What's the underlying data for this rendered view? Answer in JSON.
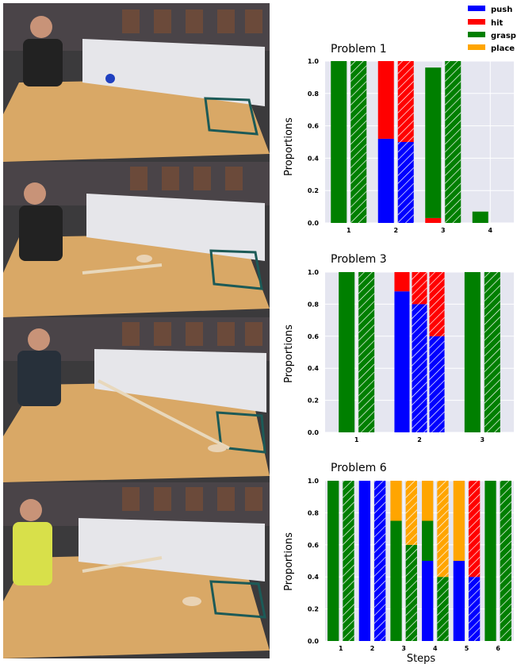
{
  "colors": {
    "push": "#0000ff",
    "hit": "#ff0000",
    "grasp": "#007f00",
    "place": "#ffa500",
    "plot_bg": "#e5e6f0"
  },
  "legend": {
    "placement": "top-right",
    "entries": [
      {
        "label": "push",
        "color": "#0000ff"
      },
      {
        "label": "hit",
        "color": "#ff0000"
      },
      {
        "label": "grasp",
        "color": "#007f00"
      },
      {
        "label": "place",
        "color": "#ffa500"
      }
    ]
  },
  "photos": [
    {
      "description_icon": "person-pushing-ball-photo"
    },
    {
      "description_icon": "person-using-stick-photo"
    },
    {
      "description_icon": "person-reaching-with-stick-photo"
    },
    {
      "description_icon": "person-using-stick-photo"
    }
  ],
  "xlabel": "Steps",
  "chart_data": [
    {
      "type": "bar",
      "title": "Problem 1",
      "ylabel": "Proportions",
      "xlabel": "",
      "ylim": [
        0,
        1
      ],
      "yticks": [
        "0.0",
        "0.2",
        "0.4",
        "0.6",
        "0.8",
        "1.0"
      ],
      "categories": [
        "1",
        "2",
        "3",
        "4"
      ],
      "grid": true,
      "bars": [
        {
          "step": "1",
          "hatched": false,
          "stack": [
            {
              "action": "grasp",
              "value": 1.0
            }
          ]
        },
        {
          "step": "1",
          "hatched": true,
          "stack": [
            {
              "action": "grasp",
              "value": 1.0
            }
          ]
        },
        {
          "step": "2",
          "hatched": false,
          "stack": [
            {
              "action": "push",
              "value": 0.52
            },
            {
              "action": "hit",
              "value": 0.48
            }
          ]
        },
        {
          "step": "2",
          "hatched": true,
          "stack": [
            {
              "action": "push",
              "value": 0.5
            },
            {
              "action": "hit",
              "value": 0.5
            }
          ]
        },
        {
          "step": "3",
          "hatched": false,
          "stack": [
            {
              "action": "hit",
              "value": 0.03
            },
            {
              "action": "grasp",
              "value": 0.93
            }
          ]
        },
        {
          "step": "3",
          "hatched": true,
          "stack": [
            {
              "action": "grasp",
              "value": 1.0
            }
          ]
        },
        {
          "step": "4",
          "hatched": false,
          "stack": [
            {
              "action": "grasp",
              "value": 0.07
            }
          ]
        },
        {
          "step": "4",
          "hatched": true,
          "stack": []
        }
      ]
    },
    {
      "type": "bar",
      "title": "Problem 3",
      "ylabel": "Proportions",
      "xlabel": "",
      "ylim": [
        0,
        1
      ],
      "yticks": [
        "0.0",
        "0.2",
        "0.4",
        "0.6",
        "0.8",
        "1.0"
      ],
      "categories": [
        "1",
        "2",
        "3"
      ],
      "grid": true,
      "bars": [
        {
          "step": "1",
          "hatched": false,
          "stack": [
            {
              "action": "grasp",
              "value": 1.0
            }
          ]
        },
        {
          "step": "1",
          "hatched": true,
          "stack": [
            {
              "action": "grasp",
              "value": 1.0
            }
          ]
        },
        {
          "step": "2",
          "hatched": false,
          "stack": [
            {
              "action": "push",
              "value": 0.88
            },
            {
              "action": "hit",
              "value": 0.12
            }
          ]
        },
        {
          "step": "2",
          "hatched": true,
          "stack": [
            {
              "action": "push",
              "value": 0.8
            },
            {
              "action": "hit",
              "value": 0.2
            }
          ]
        },
        {
          "step": "2",
          "hatched": true,
          "stack": [
            {
              "action": "push",
              "value": 0.6
            },
            {
              "action": "hit",
              "value": 0.4
            }
          ]
        },
        {
          "step": "3",
          "hatched": false,
          "stack": [
            {
              "action": "grasp",
              "value": 1.0
            }
          ]
        },
        {
          "step": "3",
          "hatched": true,
          "stack": [
            {
              "action": "grasp",
              "value": 1.0
            }
          ]
        }
      ]
    },
    {
      "type": "bar",
      "title": "Problem 6",
      "ylabel": "Proportions",
      "xlabel": "Steps",
      "ylim": [
        0,
        1
      ],
      "yticks": [
        "0.0",
        "0.2",
        "0.4",
        "0.6",
        "0.8",
        "1.0"
      ],
      "categories": [
        "1",
        "2",
        "3",
        "4",
        "5",
        "6"
      ],
      "grid": true,
      "bars": [
        {
          "step": "1",
          "hatched": false,
          "stack": [
            {
              "action": "grasp",
              "value": 1.0
            }
          ]
        },
        {
          "step": "1",
          "hatched": true,
          "stack": [
            {
              "action": "grasp",
              "value": 1.0
            }
          ]
        },
        {
          "step": "2",
          "hatched": false,
          "stack": [
            {
              "action": "push",
              "value": 1.0
            }
          ]
        },
        {
          "step": "2",
          "hatched": true,
          "stack": [
            {
              "action": "push",
              "value": 1.0
            }
          ]
        },
        {
          "step": "3",
          "hatched": false,
          "stack": [
            {
              "action": "grasp",
              "value": 0.75
            },
            {
              "action": "place",
              "value": 0.25
            }
          ]
        },
        {
          "step": "3",
          "hatched": true,
          "stack": [
            {
              "action": "grasp",
              "value": 0.6
            },
            {
              "action": "place",
              "value": 0.4
            }
          ]
        },
        {
          "step": "4",
          "hatched": false,
          "stack": [
            {
              "action": "push",
              "value": 0.5
            },
            {
              "action": "grasp",
              "value": 0.25
            },
            {
              "action": "place",
              "value": 0.25
            }
          ]
        },
        {
          "step": "4",
          "hatched": true,
          "stack": [
            {
              "action": "grasp",
              "value": 0.4
            },
            {
              "action": "place",
              "value": 0.6
            }
          ]
        },
        {
          "step": "5",
          "hatched": false,
          "stack": [
            {
              "action": "push",
              "value": 0.5
            },
            {
              "action": "place",
              "value": 0.5
            }
          ]
        },
        {
          "step": "5",
          "hatched": true,
          "stack": [
            {
              "action": "push",
              "value": 0.4
            },
            {
              "action": "hit",
              "value": 0.6
            }
          ]
        },
        {
          "step": "6",
          "hatched": false,
          "stack": [
            {
              "action": "grasp",
              "value": 1.0
            }
          ]
        },
        {
          "step": "6",
          "hatched": true,
          "stack": [
            {
              "action": "grasp",
              "value": 1.0
            }
          ]
        }
      ]
    }
  ]
}
